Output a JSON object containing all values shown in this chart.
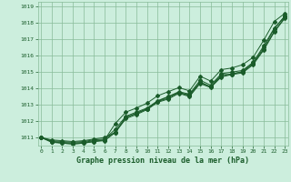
{
  "title": "Graphe pression niveau de la mer (hPa)",
  "background_color": "#cceedd",
  "plot_bg_color": "#cceedd",
  "grid_color": "#88bb99",
  "line_color": "#1a5c2a",
  "marker_color": "#1a5c2a",
  "ylim": [
    1010.5,
    1019.3
  ],
  "xlim": [
    -0.3,
    23.3
  ],
  "yticks": [
    1011,
    1012,
    1013,
    1014,
    1015,
    1016,
    1017,
    1018,
    1019
  ],
  "xticks": [
    0,
    1,
    2,
    3,
    4,
    5,
    6,
    7,
    8,
    9,
    10,
    11,
    12,
    13,
    14,
    15,
    16,
    17,
    18,
    19,
    20,
    21,
    22,
    23
  ],
  "series": [
    [
      1011.0,
      1010.85,
      1010.8,
      1010.75,
      1010.8,
      1010.9,
      1011.0,
      1011.3,
      1012.2,
      1012.5,
      1012.75,
      1013.2,
      1013.5,
      1013.75,
      1013.6,
      1014.4,
      1014.1,
      1014.85,
      1014.85,
      1015.05,
      1015.55,
      1016.5,
      1017.65,
      1018.45
    ],
    [
      1011.0,
      1010.8,
      1010.75,
      1010.7,
      1010.75,
      1010.85,
      1010.9,
      1011.5,
      1012.3,
      1012.55,
      1012.8,
      1013.25,
      1013.5,
      1013.8,
      1013.65,
      1014.5,
      1014.2,
      1014.9,
      1015.0,
      1015.1,
      1015.6,
      1016.6,
      1017.7,
      1018.4
    ],
    [
      1011.0,
      1010.75,
      1010.7,
      1010.65,
      1010.7,
      1010.8,
      1010.85,
      1011.35,
      1012.25,
      1012.45,
      1012.75,
      1013.2,
      1013.4,
      1013.75,
      1013.55,
      1014.35,
      1014.1,
      1014.75,
      1014.9,
      1015.0,
      1015.5,
      1016.4,
      1017.5,
      1018.35
    ],
    [
      1011.0,
      1010.7,
      1010.65,
      1010.6,
      1010.65,
      1010.75,
      1010.8,
      1011.3,
      1012.15,
      1012.4,
      1012.7,
      1013.15,
      1013.35,
      1013.7,
      1013.5,
      1014.3,
      1014.05,
      1014.7,
      1014.85,
      1014.95,
      1015.45,
      1016.35,
      1017.45,
      1018.3
    ],
    [
      1011.0,
      1010.75,
      1010.65,
      1010.6,
      1010.65,
      1010.75,
      1010.85,
      1011.85,
      1012.55,
      1012.8,
      1013.1,
      1013.55,
      1013.8,
      1014.05,
      1013.85,
      1014.75,
      1014.45,
      1015.15,
      1015.25,
      1015.45,
      1015.9,
      1016.95,
      1018.1,
      1018.6
    ]
  ],
  "figsize": [
    3.2,
    2.0
  ],
  "dpi": 100
}
